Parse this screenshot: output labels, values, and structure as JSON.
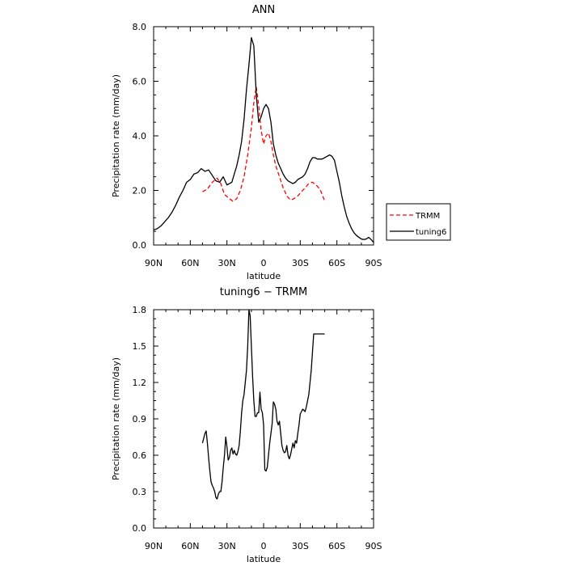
{
  "chart_data": [
    {
      "type": "line",
      "title": "ANN",
      "xlabel": "latitude",
      "ylabel": "Precipitation rate (mm/day)",
      "xlim": [
        90,
        -90
      ],
      "ylim": [
        0,
        8
      ],
      "x_ticks": [
        90,
        60,
        30,
        0,
        -30,
        -60,
        -90
      ],
      "x_tick_labels": [
        "90N",
        "60N",
        "30N",
        "0",
        "30S",
        "60S",
        "90S"
      ],
      "y_ticks": [
        0,
        2,
        4,
        6,
        8
      ],
      "y_tick_labels": [
        "0.0",
        "2.0",
        "4.0",
        "6.0",
        "8.0"
      ],
      "legend_position": "right",
      "series": [
        {
          "name": "TRMM",
          "color": "#ff0000",
          "style": "dashed",
          "x": [
            50,
            46,
            42,
            38,
            35,
            32,
            28,
            25,
            22,
            19,
            16,
            13,
            10,
            8,
            6,
            4,
            2,
            0,
            -2,
            -4,
            -6,
            -8,
            -10,
            -13,
            -16,
            -19,
            -22,
            -25,
            -28,
            -31,
            -34,
            -37,
            -40,
            -43,
            -46,
            -48,
            -50
          ],
          "y": [
            1.95,
            2.05,
            2.3,
            2.45,
            2.25,
            1.85,
            1.7,
            1.6,
            1.7,
            2.0,
            2.5,
            3.3,
            4.3,
            5.2,
            5.8,
            5.1,
            4.2,
            3.7,
            4.0,
            4.1,
            3.8,
            3.3,
            2.9,
            2.5,
            2.1,
            1.8,
            1.65,
            1.7,
            1.8,
            1.95,
            2.1,
            2.25,
            2.3,
            2.2,
            2.05,
            1.85,
            1.6
          ]
        },
        {
          "name": "tuning6",
          "color": "#000000",
          "style": "solid",
          "x": [
            90,
            87,
            84,
            81,
            78,
            75,
            72,
            69,
            66,
            63,
            60,
            57,
            54,
            51,
            48,
            45,
            42,
            39,
            36,
            33,
            30,
            28,
            26,
            24,
            22,
            20,
            18,
            16,
            14,
            12,
            10,
            8,
            6,
            5,
            4,
            2,
            0,
            -2,
            -4,
            -6,
            -8,
            -10,
            -12,
            -14,
            -16,
            -18,
            -20,
            -22,
            -24,
            -26,
            -28,
            -30,
            -32,
            -34,
            -36,
            -38,
            -40,
            -42,
            -44,
            -46,
            -48,
            -50,
            -52,
            -54,
            -56,
            -58,
            -60,
            -62,
            -64,
            -66,
            -68,
            -70,
            -72,
            -74,
            -76,
            -78,
            -80,
            -82,
            -84,
            -86,
            -88,
            -90
          ],
          "y": [
            0.55,
            0.6,
            0.7,
            0.85,
            1.0,
            1.2,
            1.45,
            1.75,
            2.0,
            2.3,
            2.4,
            2.6,
            2.65,
            2.8,
            2.7,
            2.75,
            2.55,
            2.35,
            2.3,
            2.5,
            2.2,
            2.25,
            2.3,
            2.6,
            2.9,
            3.3,
            3.8,
            4.6,
            5.7,
            6.6,
            7.6,
            7.3,
            5.5,
            5.0,
            4.5,
            4.7,
            5.0,
            5.15,
            5.0,
            4.5,
            3.7,
            3.3,
            3.0,
            2.8,
            2.6,
            2.45,
            2.35,
            2.3,
            2.25,
            2.3,
            2.4,
            2.45,
            2.5,
            2.6,
            2.8,
            3.05,
            3.2,
            3.2,
            3.15,
            3.15,
            3.15,
            3.2,
            3.25,
            3.3,
            3.25,
            3.1,
            2.7,
            2.3,
            1.8,
            1.4,
            1.05,
            0.8,
            0.6,
            0.45,
            0.35,
            0.28,
            0.22,
            0.2,
            0.22,
            0.28,
            0.2,
            0.1
          ]
        }
      ]
    },
    {
      "type": "line",
      "title": "tuning6 − TRMM",
      "xlabel": "latitude",
      "ylabel": "Precipitation rate (mm/day)",
      "xlim": [
        90,
        -90
      ],
      "ylim": [
        0,
        1.8
      ],
      "x_ticks": [
        90,
        60,
        30,
        0,
        -30,
        -60,
        -90
      ],
      "x_tick_labels": [
        "90N",
        "60N",
        "30N",
        "0",
        "30S",
        "60S",
        "90S"
      ],
      "y_ticks": [
        0,
        0.3,
        0.6,
        0.9,
        1.2,
        1.5,
        1.8
      ],
      "y_tick_labels": [
        "0.0",
        "0.3",
        "0.6",
        "0.9",
        "1.2",
        "1.5",
        "1.8"
      ],
      "series": [
        {
          "color": "#000000",
          "style": "solid",
          "x": [
            50,
            48,
            47,
            46,
            45,
            44,
            43,
            42,
            41,
            40,
            39,
            38,
            37,
            36,
            35,
            34,
            33,
            32,
            31,
            30,
            29,
            28,
            27,
            26,
            25,
            24,
            23,
            22,
            21,
            20,
            19,
            18,
            17,
            16,
            15,
            14,
            13,
            12,
            11,
            10,
            9,
            8,
            7,
            6,
            5,
            4,
            3,
            2,
            1,
            0,
            -1,
            -2,
            -3,
            -4,
            -5,
            -6,
            -7,
            -8,
            -9,
            -10,
            -11,
            -12,
            -13,
            -14,
            -15,
            -16,
            -17,
            -18,
            -19,
            -20,
            -21,
            -22,
            -23,
            -24,
            -25,
            -26,
            -27,
            -28,
            -29,
            -30,
            -31,
            -32,
            -33,
            -34,
            -35,
            -36,
            -37,
            -38,
            -39,
            -40,
            -41,
            -42,
            -43,
            -44,
            -45,
            -46,
            -47,
            -48,
            -49,
            -50
          ],
          "y": [
            0.7,
            0.78,
            0.8,
            0.7,
            0.58,
            0.47,
            0.38,
            0.35,
            0.33,
            0.3,
            0.25,
            0.24,
            0.28,
            0.3,
            0.3,
            0.38,
            0.5,
            0.6,
            0.75,
            0.67,
            0.56,
            0.58,
            0.64,
            0.66,
            0.61,
            0.64,
            0.61,
            0.6,
            0.63,
            0.68,
            0.8,
            0.95,
            1.05,
            1.1,
            1.2,
            1.3,
            1.5,
            1.8,
            1.75,
            1.5,
            1.25,
            1.05,
            0.92,
            0.92,
            0.95,
            0.95,
            1.12,
            0.98,
            0.95,
            0.85,
            0.48,
            0.47,
            0.5,
            0.6,
            0.7,
            0.78,
            0.86,
            1.04,
            1.02,
            0.98,
            0.88,
            0.85,
            0.88,
            0.78,
            0.68,
            0.64,
            0.62,
            0.63,
            0.68,
            0.6,
            0.57,
            0.6,
            0.65,
            0.7,
            0.66,
            0.72,
            0.7,
            0.78,
            0.85,
            0.94,
            0.96,
            0.98,
            0.97,
            0.96,
            1.0,
            1.05,
            1.1,
            1.2,
            1.3,
            1.45,
            1.6,
            1.6,
            1.6,
            1.6,
            1.6,
            1.6,
            1.6,
            1.6,
            1.6,
            1.6
          ]
        }
      ]
    }
  ]
}
